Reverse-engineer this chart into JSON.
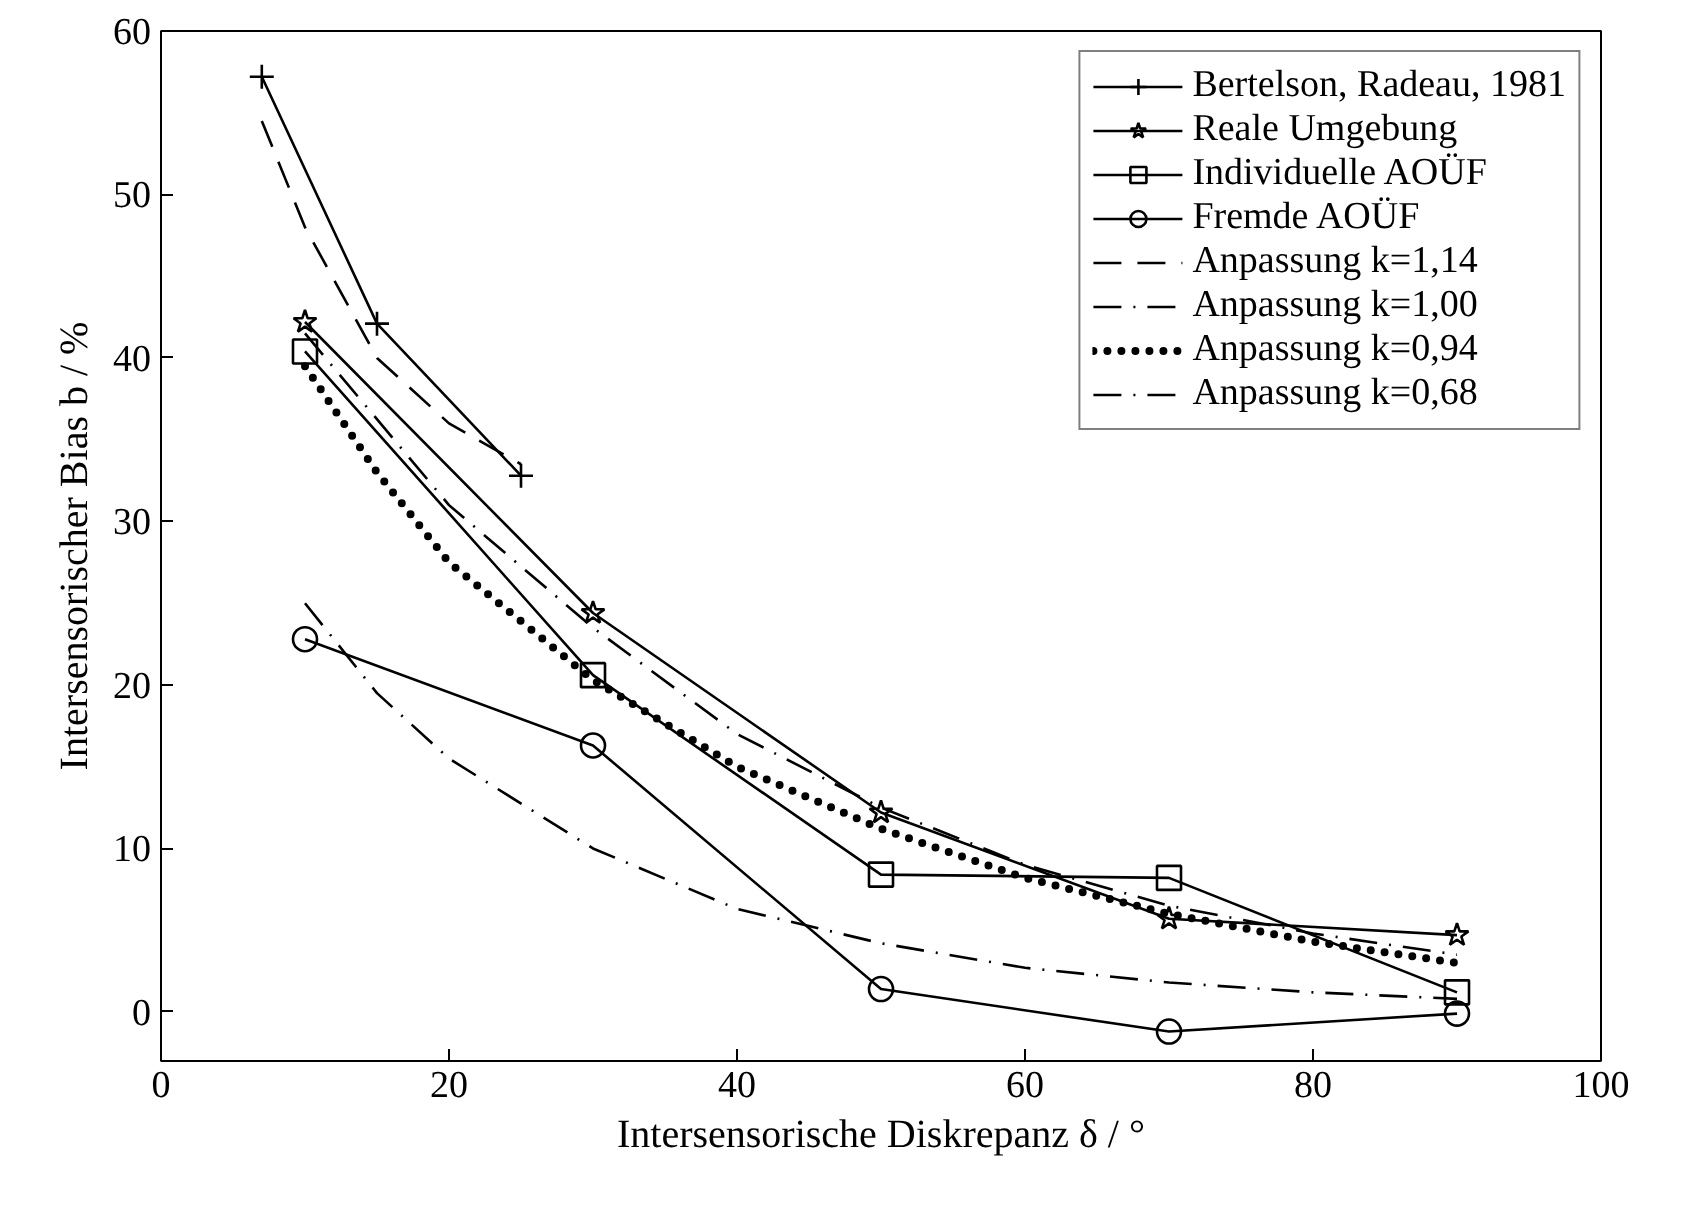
{
  "chart_data": {
    "type": "line",
    "xlabel": "Intersensorische Diskrepanz δ / °",
    "ylabel": "Intersensorischer Bias b / %",
    "xlim": [
      0,
      100
    ],
    "xticks": [
      0,
      20,
      40,
      60,
      80,
      100
    ],
    "ylim": [
      -3,
      60
    ],
    "yticks": [
      0,
      10,
      20,
      30,
      40,
      50,
      60
    ],
    "grid": false,
    "legend": "top right",
    "series": [
      {
        "name": "Bertelson, Radeau, 1981",
        "color": "#000000",
        "marker": "cross",
        "line_style": "solid",
        "x": [
          7,
          15,
          25
        ],
        "values": [
          57.2,
          42.1,
          32.8
        ]
      },
      {
        "name": "Reale Umgebung",
        "color": "#000000",
        "marker": "star",
        "line_style": "solid",
        "x": [
          10,
          30,
          50,
          70,
          90
        ],
        "values": [
          42.2,
          24.4,
          12.2,
          5.7,
          4.7
        ]
      },
      {
        "name": "Individuelle AOÜF",
        "color": "#000000",
        "marker": "square",
        "line_style": "solid",
        "x": [
          10,
          30,
          50,
          70,
          90
        ],
        "values": [
          40.4,
          20.6,
          8.4,
          8.2,
          1.2
        ]
      },
      {
        "name": "Fremde AOÜF",
        "color": "#000000",
        "marker": "circle",
        "line_style": "solid",
        "x": [
          10,
          30,
          50,
          70,
          90
        ],
        "values": [
          22.8,
          16.3,
          1.4,
          -1.2,
          -0.1
        ]
      },
      {
        "name": "Anpassung k=1,14",
        "color": "#000000",
        "marker": "none",
        "line_style": "dashed",
        "x": [
          7,
          10,
          15,
          20,
          25
        ],
        "values": [
          54.5,
          48,
          40,
          36,
          33.5
        ]
      },
      {
        "name": "Anpassung k=1,00",
        "color": "#000000",
        "marker": "none",
        "line_style": "dashdot",
        "x": [
          10,
          20,
          30,
          40,
          50,
          60,
          70,
          80,
          90
        ],
        "values": [
          41.5,
          31,
          23.5,
          17,
          12.5,
          9,
          6.5,
          4.8,
          3.5
        ]
      },
      {
        "name": "Anpassung k=0,94",
        "color": "#000000",
        "marker": "none",
        "line_style": "dotted",
        "x": [
          10,
          15,
          20,
          30,
          40,
          50,
          60,
          70,
          80,
          90
        ],
        "values": [
          39.5,
          33,
          27.5,
          20.3,
          15,
          11.2,
          8.2,
          6,
          4.3,
          3
        ]
      },
      {
        "name": "Anpassung k=0,68",
        "color": "#000000",
        "marker": "none",
        "line_style": "dashdot",
        "x": [
          10,
          15,
          20,
          30,
          40,
          50,
          60,
          70,
          80,
          90
        ],
        "values": [
          25,
          19.5,
          15.5,
          10,
          6.3,
          4.2,
          2.7,
          1.8,
          1.2,
          0.8
        ]
      }
    ]
  }
}
